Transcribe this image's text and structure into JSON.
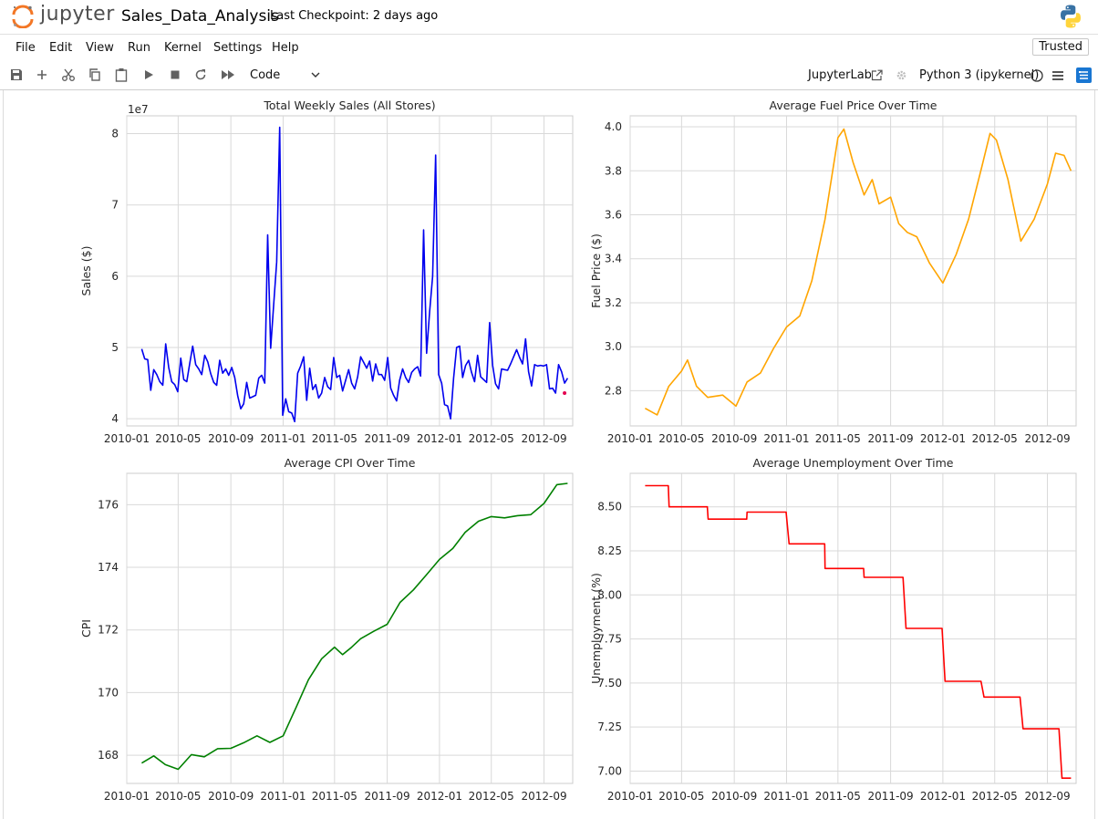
{
  "header": {
    "logo_text": "jupyter",
    "notebook_name": "Sales_Data_Analysis",
    "checkpoint": "Last Checkpoint: 2 days ago"
  },
  "menu": {
    "items": [
      "File",
      "Edit",
      "View",
      "Run",
      "Kernel",
      "Settings",
      "Help"
    ],
    "trusted": "Trusted"
  },
  "toolbar": {
    "cell_type": "Code",
    "jupyterlab_link": "JupyterLab",
    "kernel": "Python 3 (ipykernel)",
    "icons": [
      "save-icon",
      "add-icon",
      "cut-icon",
      "copy-icon",
      "paste-icon",
      "run-icon",
      "stop-icon",
      "restart-icon",
      "fast-forward-icon"
    ]
  },
  "colors": {
    "sales": "#0000ee",
    "fuel": "#ffa500",
    "cpi": "#008000",
    "unemployment": "#ff0000",
    "grid": "#d9d9d9"
  },
  "chart_data": [
    {
      "type": "line",
      "title": "Total Weekly Sales (All Stores)",
      "ylabel": "Sales ($)",
      "xlabel": "",
      "offset_label": "1e7",
      "x_ticks": [
        "2010-01",
        "2010-05",
        "2010-09",
        "2011-01",
        "2011-05",
        "2011-09",
        "2012-01",
        "2012-05",
        "2012-09"
      ],
      "y_ticks": [
        "4",
        "5",
        "6",
        "7",
        "8"
      ],
      "ylim": [
        3.9,
        8.25
      ],
      "xlim": [
        "2010-01-01",
        "2012-11-07"
      ],
      "y_scale_multiplier": 10000000,
      "x": [
        "2010-02-05",
        "2010-02-12",
        "2010-02-19",
        "2010-02-26",
        "2010-03-05",
        "2010-03-12",
        "2010-03-19",
        "2010-03-26",
        "2010-04-02",
        "2010-04-09",
        "2010-04-16",
        "2010-04-23",
        "2010-04-30",
        "2010-05-07",
        "2010-05-14",
        "2010-05-21",
        "2010-05-28",
        "2010-06-04",
        "2010-06-11",
        "2010-06-18",
        "2010-06-25",
        "2010-07-02",
        "2010-07-09",
        "2010-07-16",
        "2010-07-23",
        "2010-07-30",
        "2010-08-06",
        "2010-08-13",
        "2010-08-20",
        "2010-08-27",
        "2010-09-03",
        "2010-09-10",
        "2010-09-17",
        "2010-09-24",
        "2010-10-01",
        "2010-10-08",
        "2010-10-15",
        "2010-10-22",
        "2010-10-29",
        "2010-11-05",
        "2010-11-12",
        "2010-11-19",
        "2010-11-26",
        "2010-12-03",
        "2010-12-10",
        "2010-12-17",
        "2010-12-24",
        "2010-12-31",
        "2011-01-07",
        "2011-01-14",
        "2011-01-21",
        "2011-01-28",
        "2011-02-04",
        "2011-02-11",
        "2011-02-18",
        "2011-02-25",
        "2011-03-04",
        "2011-03-11",
        "2011-03-18",
        "2011-03-25",
        "2011-04-01",
        "2011-04-08",
        "2011-04-15",
        "2011-04-22",
        "2011-04-29",
        "2011-05-06",
        "2011-05-13",
        "2011-05-20",
        "2011-05-27",
        "2011-06-03",
        "2011-06-10",
        "2011-06-17",
        "2011-06-24",
        "2011-07-01",
        "2011-07-08",
        "2011-07-15",
        "2011-07-22",
        "2011-07-29",
        "2011-08-05",
        "2011-08-12",
        "2011-08-19",
        "2011-08-26",
        "2011-09-02",
        "2011-09-09",
        "2011-09-16",
        "2011-09-23",
        "2011-09-30",
        "2011-10-07",
        "2011-10-14",
        "2011-10-21",
        "2011-10-28",
        "2011-11-04",
        "2011-11-11",
        "2011-11-18",
        "2011-11-25",
        "2011-12-02",
        "2011-12-09",
        "2011-12-16",
        "2011-12-23",
        "2011-12-30",
        "2012-01-06",
        "2012-01-13",
        "2012-01-20",
        "2012-01-27",
        "2012-02-03",
        "2012-02-10",
        "2012-02-17",
        "2012-02-24",
        "2012-03-02",
        "2012-03-09",
        "2012-03-16",
        "2012-03-23",
        "2012-03-30",
        "2012-04-06",
        "2012-04-13",
        "2012-04-20",
        "2012-04-27",
        "2012-05-04",
        "2012-05-11",
        "2012-05-18",
        "2012-05-25",
        "2012-06-01",
        "2012-06-08",
        "2012-06-15",
        "2012-06-22",
        "2012-06-29",
        "2012-07-06",
        "2012-07-13",
        "2012-07-20",
        "2012-07-27",
        "2012-08-03",
        "2012-08-10",
        "2012-08-17",
        "2012-08-24",
        "2012-08-31",
        "2012-09-07",
        "2012-09-14",
        "2012-09-21",
        "2012-09-28",
        "2012-10-05",
        "2012-10-12",
        "2012-10-19",
        "2012-10-26"
      ],
      "series": [
        {
          "values": [
            4.98,
            4.84,
            4.83,
            4.4,
            4.69,
            4.62,
            4.52,
            4.47,
            5.05,
            4.72,
            4.52,
            4.48,
            4.38,
            4.85,
            4.55,
            4.52,
            4.78,
            5.02,
            4.76,
            4.7,
            4.62,
            4.89,
            4.8,
            4.63,
            4.51,
            4.47,
            4.82,
            4.64,
            4.7,
            4.61,
            4.72,
            4.58,
            4.32,
            4.14,
            4.21,
            4.51,
            4.29,
            4.31,
            4.33,
            4.57,
            4.61,
            4.5,
            6.58,
            4.99,
            5.6,
            6.2,
            8.09,
            4.05,
            4.28,
            4.1,
            4.08,
            3.96,
            4.64,
            4.74,
            4.87,
            4.26,
            4.71,
            4.41,
            4.48,
            4.29,
            4.36,
            4.58,
            4.45,
            4.41,
            4.86,
            4.58,
            4.61,
            4.39,
            4.54,
            4.69,
            4.5,
            4.42,
            4.59,
            4.87,
            4.79,
            4.71,
            4.81,
            4.53,
            4.77,
            4.62,
            4.62,
            4.54,
            4.86,
            4.43,
            4.33,
            4.25,
            4.54,
            4.7,
            4.58,
            4.51,
            4.65,
            4.7,
            4.73,
            4.6,
            6.65,
            4.92,
            5.5,
            6.0,
            7.7,
            4.62,
            4.5,
            4.2,
            4.18,
            4.0,
            4.57,
            5.0,
            5.02,
            4.58,
            4.75,
            4.82,
            4.65,
            4.52,
            4.89,
            4.59,
            4.55,
            4.51,
            5.35,
            4.75,
            4.49,
            4.42,
            4.7,
            4.69,
            4.68,
            4.77,
            4.87,
            4.97,
            4.86,
            4.77,
            5.12,
            4.66,
            4.46,
            4.76,
            4.74,
            4.75,
            4.74,
            4.76,
            4.42,
            4.43,
            4.36,
            4.76,
            4.66,
            4.5,
            4.57
          ]
        }
      ],
      "marker": {
        "x": "2012-10-19",
        "y": 4.36
      }
    },
    {
      "type": "line",
      "title": "Average Fuel Price Over Time",
      "ylabel": "Fuel Price ($)",
      "xlabel": "",
      "x_ticks": [
        "2010-01",
        "2010-05",
        "2010-09",
        "2011-01",
        "2011-05",
        "2011-09",
        "2012-01",
        "2012-05",
        "2012-09"
      ],
      "y_ticks": [
        "2.8",
        "3.0",
        "3.2",
        "3.4",
        "3.6",
        "3.8",
        "4.0"
      ],
      "ylim": [
        2.64,
        4.05
      ],
      "xlim": [
        "2010-01-01",
        "2012-11-07"
      ],
      "x": [
        "2010-02-05",
        "2010-03-05",
        "2010-04-01",
        "2010-05-01",
        "2010-05-15",
        "2010-06-05",
        "2010-07-01",
        "2010-08-05",
        "2010-09-05",
        "2010-10-01",
        "2010-11-01",
        "2010-12-01",
        "2011-01-01",
        "2011-02-01",
        "2011-03-01",
        "2011-04-01",
        "2011-05-01",
        "2011-05-15",
        "2011-06-05",
        "2011-07-01",
        "2011-07-20",
        "2011-08-05",
        "2011-09-01",
        "2011-09-20",
        "2011-10-10",
        "2011-11-01",
        "2011-12-01",
        "2012-01-01",
        "2012-02-01",
        "2012-03-01",
        "2012-04-01",
        "2012-04-20",
        "2012-05-05",
        "2012-06-01",
        "2012-07-01",
        "2012-08-01",
        "2012-09-01",
        "2012-09-20",
        "2012-10-10",
        "2012-10-26"
      ],
      "series": [
        {
          "values": [
            2.72,
            2.69,
            2.82,
            2.89,
            2.94,
            2.82,
            2.77,
            2.78,
            2.73,
            2.84,
            2.88,
            2.99,
            3.09,
            3.14,
            3.3,
            3.58,
            3.95,
            3.99,
            3.84,
            3.69,
            3.76,
            3.65,
            3.68,
            3.56,
            3.52,
            3.5,
            3.38,
            3.29,
            3.42,
            3.58,
            3.82,
            3.97,
            3.94,
            3.76,
            3.48,
            3.58,
            3.74,
            3.88,
            3.87,
            3.8
          ]
        }
      ]
    },
    {
      "type": "line",
      "title": "Average CPI Over Time",
      "ylabel": "CPI",
      "xlabel": "",
      "x_ticks": [
        "2010-01",
        "2010-05",
        "2010-09",
        "2011-01",
        "2011-05",
        "2011-09",
        "2012-01",
        "2012-05",
        "2012-09"
      ],
      "y_ticks": [
        "168",
        "170",
        "172",
        "174",
        "176"
      ],
      "ylim": [
        167.1,
        177.0
      ],
      "xlim": [
        "2010-01-01",
        "2012-11-07"
      ],
      "x": [
        "2010-02-05",
        "2010-03-05",
        "2010-04-01",
        "2010-05-01",
        "2010-06-01",
        "2010-07-01",
        "2010-08-01",
        "2010-09-01",
        "2010-10-01",
        "2010-11-01",
        "2010-12-01",
        "2011-01-01",
        "2011-02-01",
        "2011-03-01",
        "2011-04-01",
        "2011-05-01",
        "2011-05-20",
        "2011-06-10",
        "2011-07-01",
        "2011-08-01",
        "2011-09-01",
        "2011-10-01",
        "2011-11-01",
        "2011-12-01",
        "2012-01-01",
        "2012-02-01",
        "2012-03-01",
        "2012-04-01",
        "2012-05-01",
        "2012-06-01",
        "2012-07-01",
        "2012-08-01",
        "2012-09-01",
        "2012-10-01",
        "2012-10-26"
      ],
      "series": [
        {
          "values": [
            167.75,
            167.98,
            167.7,
            167.55,
            168.02,
            167.95,
            168.21,
            168.22,
            168.4,
            168.62,
            168.41,
            168.62,
            169.55,
            170.41,
            171.08,
            171.45,
            171.21,
            171.45,
            171.72,
            171.96,
            172.18,
            172.88,
            173.28,
            173.75,
            174.25,
            174.6,
            175.12,
            175.47,
            175.62,
            175.58,
            175.65,
            175.68,
            176.04,
            176.64,
            176.68
          ]
        }
      ]
    },
    {
      "type": "line",
      "title": "Average Unemployment Over Time",
      "ylabel": "Unemployment (%)",
      "xlabel": "",
      "x_ticks": [
        "2010-01",
        "2010-05",
        "2010-09",
        "2011-01",
        "2011-05",
        "2011-09",
        "2012-01",
        "2012-05",
        "2012-09"
      ],
      "y_ticks": [
        "7.00",
        "7.25",
        "7.50",
        "7.75",
        "8.00",
        "8.25",
        "8.50"
      ],
      "ylim": [
        6.93,
        8.69
      ],
      "xlim": [
        "2010-01-01",
        "2012-11-07"
      ],
      "x": [
        "2010-02-05",
        "2010-03-31",
        "2010-04-02",
        "2010-06-30",
        "2010-07-02",
        "2010-09-30",
        "2010-10-01",
        "2010-12-31",
        "2011-01-07",
        "2011-03-31",
        "2011-04-01",
        "2011-06-30",
        "2011-07-01",
        "2011-09-30",
        "2011-10-07",
        "2011-12-30",
        "2012-01-06",
        "2012-03-30",
        "2012-04-06",
        "2012-06-29",
        "2012-07-06",
        "2012-09-28",
        "2012-10-05",
        "2012-10-26"
      ],
      "series": [
        {
          "values": [
            8.62,
            8.62,
            8.5,
            8.5,
            8.43,
            8.43,
            8.47,
            8.47,
            8.29,
            8.29,
            8.15,
            8.15,
            8.1,
            8.1,
            7.81,
            7.81,
            7.51,
            7.51,
            7.42,
            7.42,
            7.24,
            7.24,
            6.96,
            6.96
          ]
        }
      ]
    }
  ]
}
